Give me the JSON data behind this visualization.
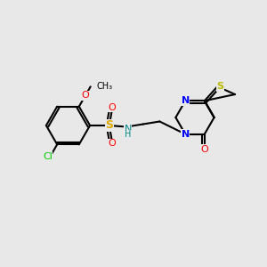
{
  "bg": "#e8e8e8",
  "bond_color": "#000000",
  "bw": 1.5,
  "cl_color": "#00cc00",
  "o_color": "#ff0000",
  "s_sulf_color": "#ddaa00",
  "s_thio_color": "#bbbb00",
  "n_color": "#0000ff",
  "nh_color": "#008888",
  "xlim": [
    0,
    10
  ],
  "ylim": [
    0,
    10
  ]
}
